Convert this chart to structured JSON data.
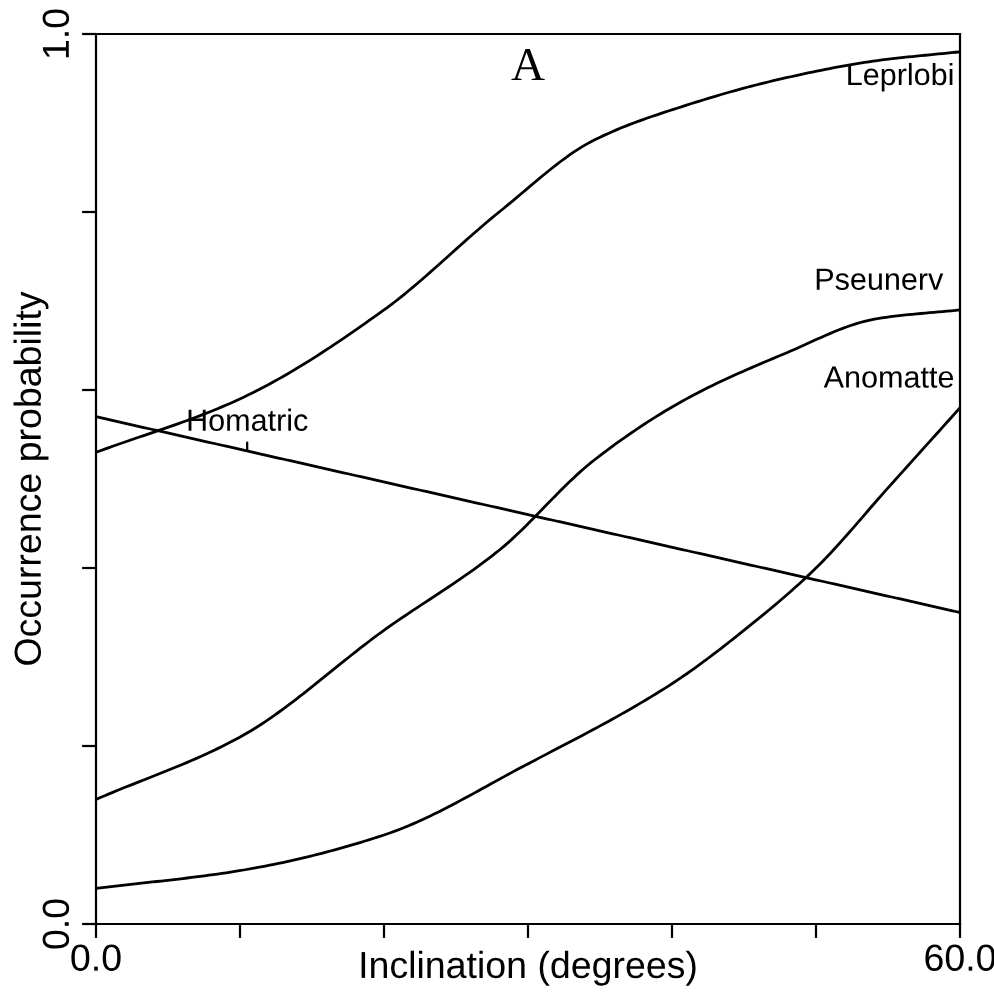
{
  "chart_data": {
    "type": "line",
    "title": "A",
    "xlabel": "Inclination (degrees)",
    "ylabel": "Occurrence probability",
    "xlim": [
      0,
      60
    ],
    "ylim": [
      0,
      1
    ],
    "xticks": [
      {
        "value": 0,
        "label": "0.0"
      },
      {
        "value": 10,
        "label": null
      },
      {
        "value": 20,
        "label": null
      },
      {
        "value": 30,
        "label": null
      },
      {
        "value": 40,
        "label": null
      },
      {
        "value": 50,
        "label": null
      },
      {
        "value": 60,
        "label": "60.0"
      }
    ],
    "yticks": [
      {
        "value": 0,
        "label": "0.0"
      },
      {
        "value": 0.2,
        "label": null
      },
      {
        "value": 0.4,
        "label": null
      },
      {
        "value": 0.6,
        "label": null
      },
      {
        "value": 0.8,
        "label": null
      },
      {
        "value": 1,
        "label": "1.0"
      }
    ],
    "x": [
      0,
      10,
      20,
      28,
      34.5,
      41,
      47.7,
      54.2,
      60
    ],
    "series": [
      {
        "name": "Leprlobi",
        "color": "#000000",
        "values": [
          0.53,
          0.59,
          0.69,
          0.8,
          0.88,
          0.92,
          0.95,
          0.97,
          0.98
        ]
      },
      {
        "name": "Pseunerv",
        "color": "#000000",
        "values": [
          0.14,
          0.21,
          0.33,
          0.42,
          0.52,
          0.59,
          0.64,
          0.68,
          0.69
        ]
      },
      {
        "name": "Anomatte",
        "color": "#000000",
        "x": [
          0,
          10,
          20,
          30,
          40,
          45,
          50,
          55,
          60
        ],
        "values": [
          0.04,
          0.06,
          0.1,
          0.18,
          0.27,
          0.33,
          0.4,
          0.49,
          0.58
        ]
      },
      {
        "name": "Homatric",
        "color": "#000000",
        "x": [
          0,
          30,
          60
        ],
        "values": [
          0.57,
          0.46,
          0.35
        ]
      }
    ],
    "grid": false,
    "legend": false,
    "marker": "none",
    "line_style": "solid"
  }
}
